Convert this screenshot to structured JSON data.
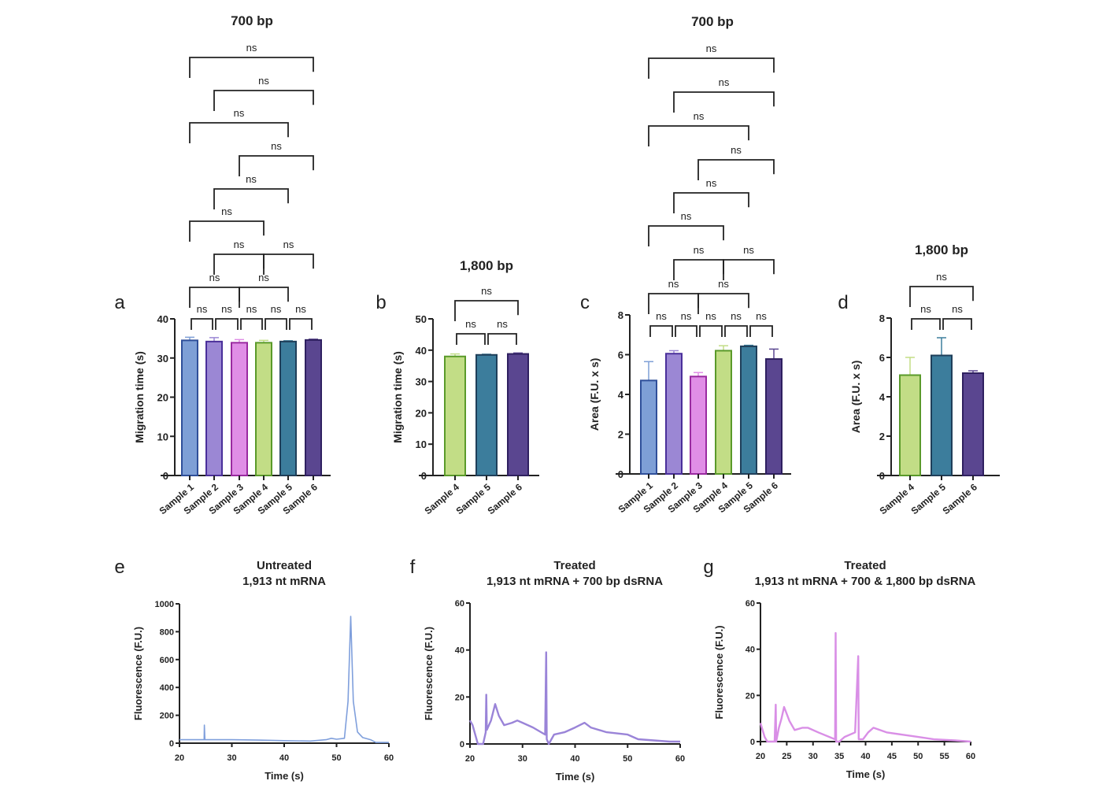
{
  "chart_data": [
    {
      "id": "a",
      "panel_label": "a",
      "type": "bar",
      "title": "700 bp",
      "ylabel": "Migration time (s)",
      "xlabel": "",
      "ylim": [
        0,
        40
      ],
      "yticks": [
        0,
        10,
        20,
        30,
        40
      ],
      "categories": [
        "Sample 1",
        "Sample 2",
        "Sample 3",
        "Sample 4",
        "Sample 5",
        "Sample 6"
      ],
      "values": [
        34.5,
        34.2,
        33.9,
        33.9,
        34.2,
        34.6
      ],
      "errors": [
        0.8,
        1.0,
        0.8,
        0.6,
        0.2,
        0.2
      ],
      "comparisons": [
        {
          "pair": [
            1,
            2
          ],
          "label": "ns"
        },
        {
          "pair": [
            2,
            3
          ],
          "label": "ns"
        },
        {
          "pair": [
            3,
            4
          ],
          "label": "ns"
        },
        {
          "pair": [
            4,
            5
          ],
          "label": "ns"
        },
        {
          "pair": [
            5,
            6
          ],
          "label": "ns"
        },
        {
          "pair": [
            1,
            3
          ],
          "label": "ns"
        },
        {
          "pair": [
            3,
            5
          ],
          "label": "ns"
        },
        {
          "pair": [
            2,
            4
          ],
          "label": "ns"
        },
        {
          "pair": [
            4,
            6
          ],
          "label": "ns"
        },
        {
          "pair": [
            1,
            4
          ],
          "label": "ns"
        },
        {
          "pair": [
            2,
            5
          ],
          "label": "ns"
        },
        {
          "pair": [
            3,
            6
          ],
          "label": "ns"
        },
        {
          "pair": [
            1,
            5
          ],
          "label": "ns"
        },
        {
          "pair": [
            2,
            6
          ],
          "label": "ns"
        },
        {
          "pair": [
            1,
            6
          ],
          "label": "ns"
        }
      ]
    },
    {
      "id": "b",
      "panel_label": "b",
      "type": "bar",
      "title": "1,800 bp",
      "ylabel": "Migration time (s)",
      "xlabel": "",
      "ylim": [
        0,
        50
      ],
      "yticks": [
        0,
        10,
        20,
        30,
        40,
        50
      ],
      "categories": [
        "Sample 4",
        "Sample 5",
        "Sample 6"
      ],
      "values": [
        38.0,
        38.5,
        38.8
      ],
      "errors": [
        0.8,
        0.2,
        0.3
      ],
      "comparisons": [
        {
          "pair": [
            1,
            2
          ],
          "label": "ns"
        },
        {
          "pair": [
            2,
            3
          ],
          "label": "ns"
        },
        {
          "pair": [
            1,
            3
          ],
          "label": "ns"
        }
      ]
    },
    {
      "id": "c",
      "panel_label": "c",
      "type": "bar",
      "title": "700 bp",
      "ylabel": "Area (F.U. x s)",
      "xlabel": "",
      "ylim": [
        0,
        8
      ],
      "yticks": [
        0,
        2,
        4,
        6,
        8
      ],
      "categories": [
        "Sample 1",
        "Sample 2",
        "Sample 3",
        "Sample 4",
        "Sample 5",
        "Sample 6"
      ],
      "values": [
        4.7,
        6.05,
        4.9,
        6.2,
        6.42,
        5.78
      ],
      "errors": [
        0.95,
        0.15,
        0.2,
        0.25,
        0.05,
        0.5
      ],
      "comparisons": [
        {
          "pair": [
            1,
            2
          ],
          "label": "ns"
        },
        {
          "pair": [
            2,
            3
          ],
          "label": "ns"
        },
        {
          "pair": [
            3,
            4
          ],
          "label": "ns"
        },
        {
          "pair": [
            4,
            5
          ],
          "label": "ns"
        },
        {
          "pair": [
            5,
            6
          ],
          "label": "ns"
        },
        {
          "pair": [
            1,
            3
          ],
          "label": "ns"
        },
        {
          "pair": [
            3,
            5
          ],
          "label": "ns"
        },
        {
          "pair": [
            2,
            4
          ],
          "label": "ns"
        },
        {
          "pair": [
            4,
            6
          ],
          "label": "ns"
        },
        {
          "pair": [
            1,
            4
          ],
          "label": "ns"
        },
        {
          "pair": [
            2,
            5
          ],
          "label": "ns"
        },
        {
          "pair": [
            3,
            6
          ],
          "label": "ns"
        },
        {
          "pair": [
            1,
            5
          ],
          "label": "ns"
        },
        {
          "pair": [
            2,
            6
          ],
          "label": "ns"
        },
        {
          "pair": [
            1,
            6
          ],
          "label": "ns"
        }
      ]
    },
    {
      "id": "d",
      "panel_label": "d",
      "type": "bar",
      "title": "1,800 bp",
      "ylabel": "Area (F.U. x s)",
      "xlabel": "",
      "ylim": [
        0,
        8
      ],
      "yticks": [
        0,
        2,
        4,
        6,
        8
      ],
      "categories": [
        "Sample 4",
        "Sample 5",
        "Sample 6"
      ],
      "values": [
        5.1,
        6.1,
        5.2
      ],
      "errors": [
        0.9,
        0.9,
        0.12
      ],
      "comparisons": [
        {
          "pair": [
            1,
            2
          ],
          "label": "ns"
        },
        {
          "pair": [
            2,
            3
          ],
          "label": "ns"
        },
        {
          "pair": [
            1,
            3
          ],
          "label": "ns"
        }
      ]
    },
    {
      "id": "e",
      "panel_label": "e",
      "type": "line",
      "title": [
        "Untreated",
        "1,913 nt mRNA"
      ],
      "xlabel": "Time (s)",
      "ylabel": "Fluorescence (F.U.)",
      "xlim": [
        20,
        60
      ],
      "xticks": [
        20,
        30,
        40,
        50,
        60
      ],
      "ylim": [
        0,
        1000
      ],
      "yticks": [
        0,
        200,
        400,
        600,
        800,
        1000
      ],
      "color": "#7f9fdc",
      "points": [
        [
          20,
          25
        ],
        [
          24.7,
          25
        ],
        [
          24.75,
          130
        ],
        [
          24.85,
          25
        ],
        [
          30,
          25
        ],
        [
          35,
          22
        ],
        [
          40,
          18
        ],
        [
          45,
          15
        ],
        [
          48,
          25
        ],
        [
          49,
          35
        ],
        [
          50,
          28
        ],
        [
          51.5,
          35
        ],
        [
          52.2,
          300
        ],
        [
          52.7,
          910
        ],
        [
          53.2,
          300
        ],
        [
          54,
          80
        ],
        [
          55,
          40
        ],
        [
          56.5,
          25
        ],
        [
          57.5,
          5
        ],
        [
          60,
          5
        ]
      ]
    },
    {
      "id": "f",
      "panel_label": "f",
      "type": "line",
      "title": [
        "Treated",
        "1,913 nt mRNA + 700 bp dsRNA"
      ],
      "xlabel": "Time (s)",
      "ylabel": "Fluorescence (F.U.)",
      "xlim": [
        20,
        60
      ],
      "xticks": [
        20,
        30,
        40,
        50,
        60
      ],
      "ylim": [
        0,
        60
      ],
      "yticks": [
        0,
        20,
        40,
        60
      ],
      "color": "#9a84d8",
      "points": [
        [
          20,
          10
        ],
        [
          20.5,
          8
        ],
        [
          21.5,
          0
        ],
        [
          22.5,
          0
        ],
        [
          23,
          5
        ],
        [
          23.1,
          21
        ],
        [
          23.2,
          6
        ],
        [
          24,
          10
        ],
        [
          24.8,
          17
        ],
        [
          25.5,
          12
        ],
        [
          26.5,
          8
        ],
        [
          28,
          9
        ],
        [
          29,
          10
        ],
        [
          30,
          9
        ],
        [
          32,
          7
        ],
        [
          34.3,
          4
        ],
        [
          34.5,
          39
        ],
        [
          34.6,
          2
        ],
        [
          35,
          0
        ],
        [
          36,
          4
        ],
        [
          38,
          5
        ],
        [
          40,
          7
        ],
        [
          41.8,
          9
        ],
        [
          43,
          7
        ],
        [
          46,
          5
        ],
        [
          50,
          4
        ],
        [
          52,
          2
        ],
        [
          55,
          1.5
        ],
        [
          58,
          1
        ],
        [
          60,
          1
        ]
      ]
    },
    {
      "id": "g",
      "panel_label": "g",
      "type": "line",
      "title": [
        "Treated",
        "1,913 nt mRNA + 700 & 1,800 bp dsRNA"
      ],
      "xlabel": "Time (s)",
      "ylabel": "Fluorescence (F.U.)",
      "xlim": [
        20,
        60
      ],
      "xticks": [
        20,
        25,
        30,
        35,
        40,
        45,
        50,
        55,
        60
      ],
      "ylim": [
        0,
        60
      ],
      "yticks": [
        0,
        20,
        40,
        60
      ],
      "color": "#d98fe6",
      "points": [
        [
          20,
          8
        ],
        [
          20.8,
          2
        ],
        [
          21.3,
          0
        ],
        [
          22.7,
          0
        ],
        [
          22.9,
          16
        ],
        [
          23,
          0
        ],
        [
          23.5,
          6
        ],
        [
          24,
          10
        ],
        [
          24.5,
          15
        ],
        [
          25.5,
          9
        ],
        [
          26.5,
          5
        ],
        [
          28,
          6
        ],
        [
          29,
          6
        ],
        [
          31,
          4
        ],
        [
          34.2,
          1
        ],
        [
          34.3,
          47
        ],
        [
          34.4,
          0
        ],
        [
          35,
          0
        ],
        [
          36,
          2
        ],
        [
          38,
          4
        ],
        [
          38.6,
          37
        ],
        [
          38.7,
          1
        ],
        [
          39.5,
          1
        ],
        [
          40.5,
          4
        ],
        [
          41.5,
          6
        ],
        [
          44,
          4
        ],
        [
          47,
          3
        ],
        [
          50,
          2
        ],
        [
          53,
          1
        ],
        [
          57,
          0.5
        ],
        [
          60,
          0
        ]
      ]
    }
  ],
  "sample_colors": {
    "Sample 1": {
      "fill": "#7e9fd6",
      "stroke": "#2f4f9a"
    },
    "Sample 2": {
      "fill": "#9b87d4",
      "stroke": "#4a2f9a"
    },
    "Sample 3": {
      "fill": "#e08ee6",
      "stroke": "#9a2aa0"
    },
    "Sample 4": {
      "fill": "#c2dd86",
      "stroke": "#5a9a2a"
    },
    "Sample 5": {
      "fill": "#3c7d9c",
      "stroke": "#1f3f5a"
    },
    "Sample 6": {
      "fill": "#5a4690",
      "stroke": "#2f2060"
    }
  }
}
